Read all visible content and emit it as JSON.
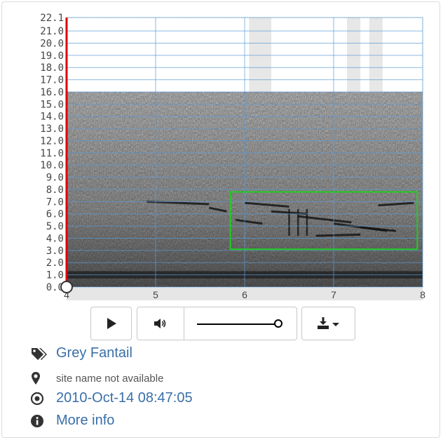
{
  "spectrogram": {
    "y_ticks": [
      "0.0",
      "1.0",
      "2.0",
      "3.0",
      "4.0",
      "5.0",
      "6.0",
      "7.0",
      "8.0",
      "9.0",
      "10.0",
      "11.0",
      "12.0",
      "13.0",
      "14.0",
      "15.0",
      "16.0",
      "17.0",
      "18.0",
      "19.0",
      "20.0",
      "21.0",
      "22.1"
    ],
    "x_ticks": [
      "4",
      "5",
      "6",
      "7",
      "8"
    ],
    "y_range": [
      0,
      22.1
    ],
    "x_range": [
      4,
      8
    ],
    "selection": {
      "t_start": 5.84,
      "t_end": 7.94,
      "f_low": 3.1,
      "f_high": 7.8,
      "color": "#22cc22"
    },
    "playhead": {
      "t": 4.0,
      "color": "#dd0000"
    }
  },
  "controls": {
    "play": "play-icon",
    "volume": "volume-icon",
    "volume_level": 1.0,
    "download": "download-icon"
  },
  "info": {
    "species": "Grey Fantail",
    "site": "site name not available",
    "datetime": "2010-Oct-14 08:47:05",
    "more": "More info"
  }
}
